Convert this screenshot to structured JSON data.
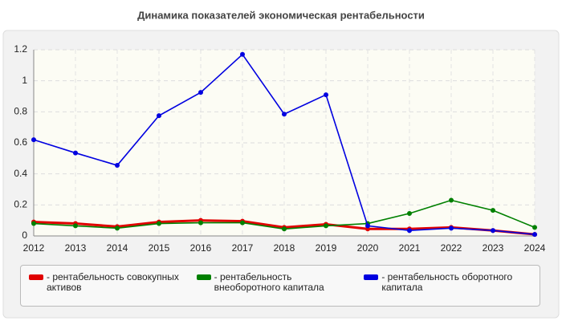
{
  "chart_data": {
    "type": "line",
    "title": "Динамика показателей экономическая рентабельности",
    "categories": [
      "2012",
      "2013",
      "2014",
      "2015",
      "2016",
      "2017",
      "2018",
      "2019",
      "2020",
      "2021",
      "2022",
      "2023",
      "2024"
    ],
    "series": [
      {
        "name": "- рентабельность совокупных активов",
        "color": "#e00000",
        "values": [
          0.09,
          0.08,
          0.06,
          0.09,
          0.1,
          0.095,
          0.055,
          0.075,
          0.045,
          0.045,
          0.055,
          0.035,
          0.01
        ]
      },
      {
        "name": "- рентабельность внеоборотного капитала",
        "color": "#008000",
        "values": [
          0.08,
          0.065,
          0.05,
          0.08,
          0.085,
          0.085,
          0.045,
          0.065,
          0.08,
          0.145,
          0.23,
          0.165,
          0.055
        ]
      },
      {
        "name": "- рентабельность оборотного капитала",
        "color": "#0000e0",
        "values": [
          0.62,
          0.535,
          0.455,
          0.775,
          0.925,
          1.17,
          0.785,
          0.91,
          0.065,
          0.035,
          0.05,
          0.035,
          0.01
        ]
      }
    ],
    "ylim": [
      0,
      1.2
    ],
    "yticks": [
      0,
      0.2,
      0.4,
      0.6,
      0.8,
      1,
      1.2
    ],
    "grid": true
  }
}
